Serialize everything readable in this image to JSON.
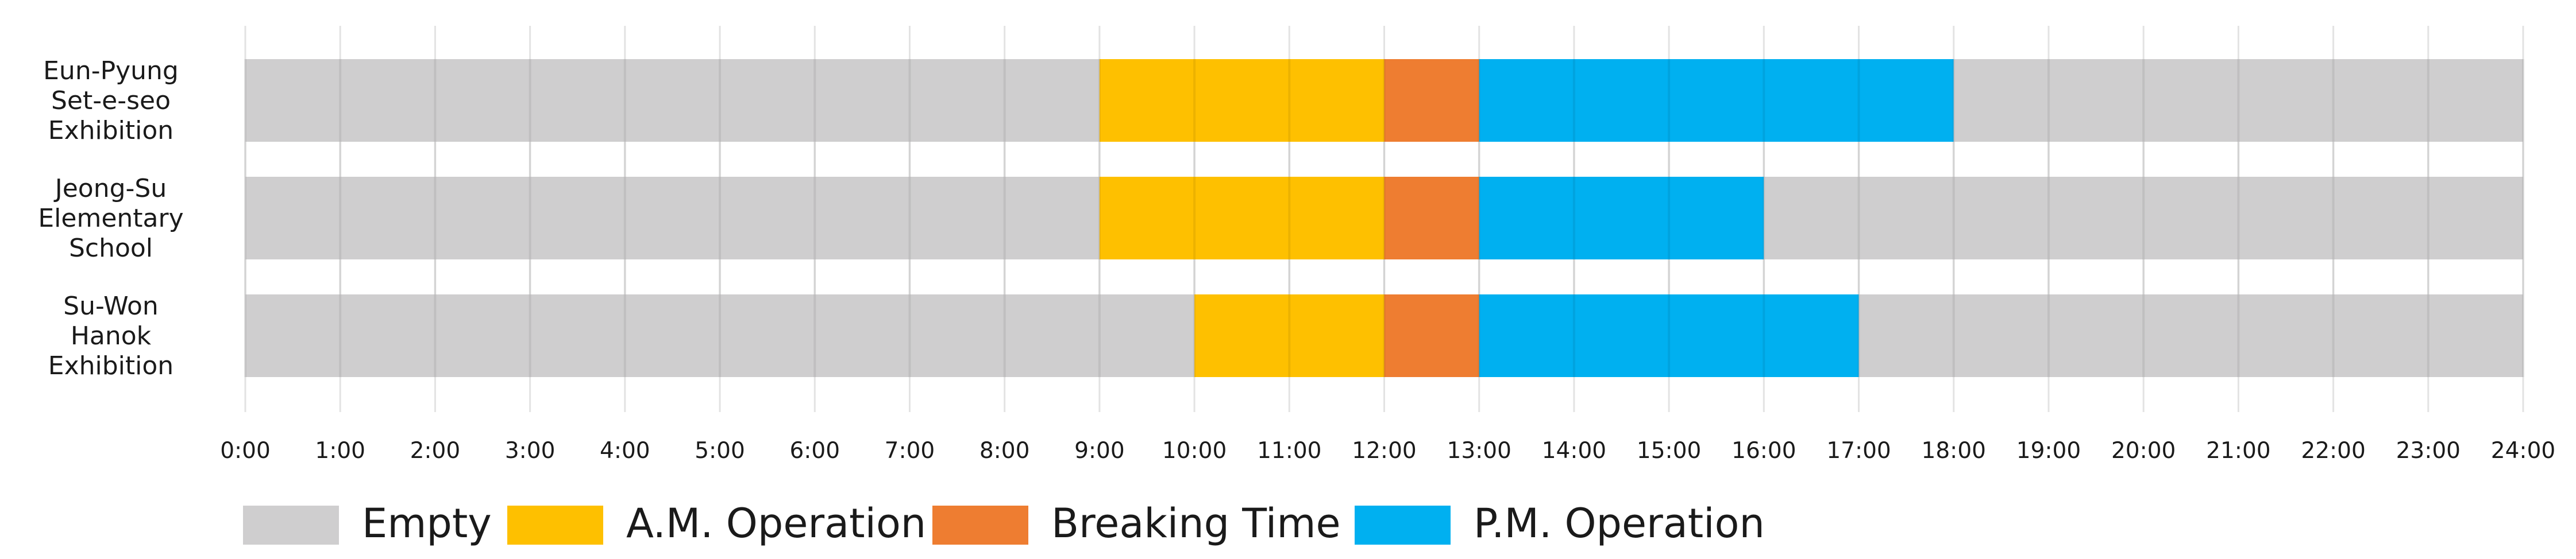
{
  "chart_data": {
    "type": "bar",
    "orientation": "horizontal",
    "stacked": true,
    "title": "",
    "xlabel": "",
    "ylabel": "",
    "xlim": [
      0,
      24
    ],
    "ticks": [
      "0:00",
      "1:00",
      "2:00",
      "3:00",
      "4:00",
      "5:00",
      "6:00",
      "7:00",
      "8:00",
      "9:00",
      "10:00",
      "11:00",
      "12:00",
      "13:00",
      "14:00",
      "15:00",
      "16:00",
      "17:00",
      "18:00",
      "19:00",
      "20:00",
      "21:00",
      "22:00",
      "23:00",
      "24:00"
    ],
    "grid": true,
    "legend_position": "bottom",
    "categories": [
      {
        "lines": [
          "Eun-Pyung",
          "Set-e-seo",
          "Exhibition"
        ]
      },
      {
        "lines": [
          "Jeong-Su",
          "Elementary",
          "School"
        ]
      },
      {
        "lines": [
          "Su-Won",
          "Hanok",
          "Exhibition"
        ]
      }
    ],
    "series": [
      {
        "name": "Empty",
        "color": "#cfcecf"
      },
      {
        "name": "A.M. Operation",
        "color": "#fec000"
      },
      {
        "name": "Breaking Time",
        "color": "#ee7d31"
      },
      {
        "name": "P.M. Operation",
        "color": "#00b0f0"
      }
    ],
    "segments": [
      [
        {
          "series": 0,
          "start": 0,
          "end": 9
        },
        {
          "series": 1,
          "start": 9,
          "end": 12
        },
        {
          "series": 2,
          "start": 12,
          "end": 13
        },
        {
          "series": 3,
          "start": 13,
          "end": 18
        },
        {
          "series": 0,
          "start": 18,
          "end": 24
        }
      ],
      [
        {
          "series": 0,
          "start": 0,
          "end": 9
        },
        {
          "series": 1,
          "start": 9,
          "end": 12
        },
        {
          "series": 2,
          "start": 12,
          "end": 13
        },
        {
          "series": 3,
          "start": 13,
          "end": 16
        },
        {
          "series": 0,
          "start": 16,
          "end": 24
        }
      ],
      [
        {
          "series": 0,
          "start": 0,
          "end": 10
        },
        {
          "series": 1,
          "start": 10,
          "end": 12
        },
        {
          "series": 2,
          "start": 12,
          "end": 13
        },
        {
          "series": 3,
          "start": 13,
          "end": 17
        },
        {
          "series": 0,
          "start": 17,
          "end": 24
        }
      ]
    ]
  }
}
